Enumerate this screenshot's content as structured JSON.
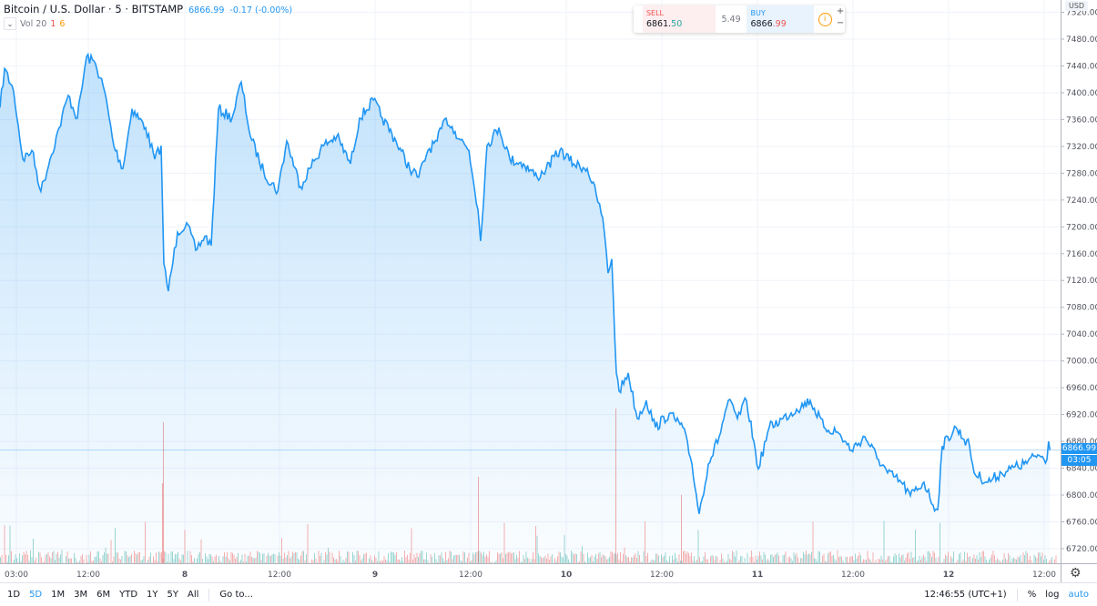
{
  "header": {
    "symbol": "Bitcoin / U.S. Dollar",
    "interval": "5",
    "exchange": "BITSTAMP",
    "price": "6866.99",
    "change": "-0.17 (-0.00%)",
    "vol_label": "Vol 20",
    "vol_a": "1",
    "vol_b": "6"
  },
  "trade": {
    "sell_label": "SELL",
    "sell_main": "6861.",
    "sell_dec": "50",
    "spread": "5.49",
    "buy_label": "BUY",
    "buy_main": "6866",
    "buy_dec": ".99",
    "plus": "+",
    "minus": "−"
  },
  "axis": {
    "currency": "USD",
    "price_ticks": [
      "7520.00",
      "7480.00",
      "7440.00",
      "7400.00",
      "7360.00",
      "7320.00",
      "7280.00",
      "7240.00",
      "7200.00",
      "7160.00",
      "7120.00",
      "7080.00",
      "7040.00",
      "7000.00",
      "6960.00",
      "6920.00",
      "6880.00",
      "6840.00",
      "6800.00",
      "6760.00",
      "6720.00"
    ],
    "current_price": "6866.99",
    "countdown": "03:05",
    "time_ticks": [
      "03:00",
      "12:00",
      "8",
      "12:00",
      "9",
      "12:00",
      "10",
      "12:00",
      "11",
      "12:00",
      "12",
      "12:00"
    ]
  },
  "bottom": {
    "ranges": [
      "1D",
      "5D",
      "1M",
      "3M",
      "6M",
      "YTD",
      "1Y",
      "5Y",
      "All"
    ],
    "active": "5D",
    "goto": "Go to...",
    "clock": "12:46:55 (UTC+1)",
    "percent": "%",
    "log": "log",
    "auto": "auto"
  },
  "colors": {
    "line": "#2196f3",
    "up": "#26a69a",
    "down": "#ef5350"
  },
  "chart_data": {
    "type": "area",
    "ylim": [
      6700,
      7520
    ],
    "grid": true,
    "x": [
      "7 00:57",
      "7 01:31",
      "7 02:40",
      "7 03:49",
      "7 04:57",
      "7 06:05",
      "7 07:14",
      "7 08:23",
      "7 09:31",
      "7 10:40",
      "7 11:49",
      "7 12:57",
      "7 14:05",
      "7 15:14",
      "7 16:23",
      "7 17:31",
      "7 19:14",
      "7 20:23",
      "7 21:11",
      "7 21:31",
      "7 22:05",
      "7 23:14",
      "8 00:23",
      "8 01:31",
      "8 02:40",
      "8 03:28",
      "8 04:23",
      "8 06:05",
      "8 07:14",
      "8 08:23",
      "8 10:05",
      "8 11:49",
      "8 12:57",
      "8 14:40",
      "8 15:49",
      "8 17:31",
      "8 19:14",
      "8 20:57",
      "8 22:05",
      "8 23:49",
      "9 00:57",
      "9 02:40",
      "9 04:23",
      "9 05:31",
      "9 06:40",
      "9 07:49",
      "9 08:57",
      "9 10:05",
      "9 11:49",
      "9 12:57",
      "9 13:17",
      "9 14:05",
      "9 15:35",
      "9 16:57",
      "9 18:40",
      "9 20:23",
      "9 21:31",
      "9 23:14",
      "10 00:57",
      "10 02:40",
      "10 03:49",
      "10 04:37",
      "10 05:17",
      "10 05:45",
      "10 06:19",
      "10 06:40",
      "10 07:49",
      "10 08:57",
      "10 10:05",
      "10 11:14",
      "10 12:57",
      "10 14:40",
      "10 15:49",
      "10 16:43",
      "10 17:52",
      "10 19:14",
      "10 20:23",
      "10 21:31",
      "10 22:40",
      "11 00:09",
      "11 01:31",
      "11 03:14",
      "11 04:57",
      "11 06:40",
      "11 08:23",
      "11 10:05",
      "11 11:49",
      "11 13:31",
      "11 15:14",
      "11 16:23",
      "11 18:05",
      "11 19:14",
      "11 20:57",
      "11 22:05",
      "11 22:40",
      "11 23:14",
      "12 00:57",
      "12 02:40",
      "12 03:14",
      "12 04:57",
      "12 06:40",
      "12 07:49",
      "12 09:31",
      "12 11:14",
      "12 12:23",
      "12 12:35",
      "12 12:45"
    ],
    "y": [
      7378,
      7436,
      7402,
      7301,
      7314,
      7253,
      7301,
      7348,
      7396,
      7362,
      7454,
      7443,
      7402,
      7321,
      7287,
      7376,
      7348,
      7301,
      7321,
      7145,
      7104,
      7192,
      7206,
      7165,
      7186,
      7172,
      7376,
      7362,
      7416,
      7335,
      7281,
      7253,
      7328,
      7260,
      7287,
      7321,
      7335,
      7294,
      7362,
      7389,
      7362,
      7328,
      7287,
      7274,
      7314,
      7328,
      7362,
      7342,
      7314,
      7226,
      7179,
      7321,
      7348,
      7301,
      7294,
      7274,
      7287,
      7314,
      7294,
      7287,
      7247,
      7213,
      7131,
      7152,
      6982,
      6955,
      6982,
      6914,
      6941,
      6901,
      6921,
      6901,
      6846,
      6772,
      6846,
      6887,
      6941,
      6914,
      6941,
      6839,
      6901,
      6914,
      6928,
      6941,
      6901,
      6894,
      6867,
      6887,
      6853,
      6833,
      6819,
      6799,
      6819,
      6785,
      6778,
      6873,
      6901,
      6873,
      6833,
      6819,
      6833,
      6839,
      6846,
      6860,
      6853,
      6880,
      6867
    ]
  }
}
